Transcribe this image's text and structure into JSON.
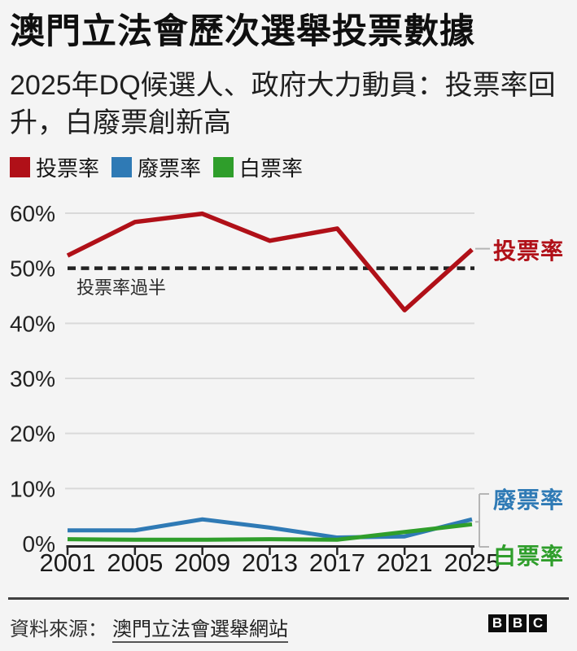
{
  "header": {
    "title": "澳門立法會歷次選舉投票數據",
    "subtitle": "2025年DQ候選人、政府大力動員：投票率回升，白廢票創新高"
  },
  "legend": {
    "items": [
      {
        "label": "投票率",
        "color": "#b01018"
      },
      {
        "label": "廢票率",
        "color": "#2f7ab5"
      },
      {
        "label": "白票率",
        "color": "#2f9e2b"
      }
    ]
  },
  "chart_data": {
    "type": "line",
    "x": [
      2001,
      2005,
      2009,
      2013,
      2017,
      2021,
      2025
    ],
    "series": [
      {
        "name": "投票率",
        "color": "#b01018",
        "values": [
          52.3,
          58.4,
          59.9,
          55.0,
          57.2,
          42.4,
          53.4
        ]
      },
      {
        "name": "廢票率",
        "color": "#2f7ab5",
        "values": [
          2.4,
          2.4,
          4.4,
          2.9,
          1.1,
          1.3,
          4.4
        ]
      },
      {
        "name": "白票率",
        "color": "#2f9e2b",
        "values": [
          0.8,
          0.7,
          0.7,
          0.8,
          0.7,
          2.1,
          3.5
        ]
      }
    ],
    "ylim": [
      0,
      63
    ],
    "yticks": [
      0,
      10,
      20,
      30,
      40,
      50,
      60
    ],
    "ytick_suffix": "%",
    "grid": true,
    "legend_position": "top",
    "annotation": {
      "threshold_value": 50,
      "threshold_label": "投票率過半",
      "line_style": "dashed"
    }
  },
  "footer": {
    "source_prefix": "資料來源：",
    "source_link": "澳門立法會選舉網站",
    "logo_letters": [
      "B",
      "B",
      "C"
    ]
  },
  "colors": {
    "background": "#f4f4f4",
    "gridline": "#d9d9d9",
    "axis": "#262626",
    "threshold_line": "#222222",
    "connector": "#b5b5b5"
  }
}
